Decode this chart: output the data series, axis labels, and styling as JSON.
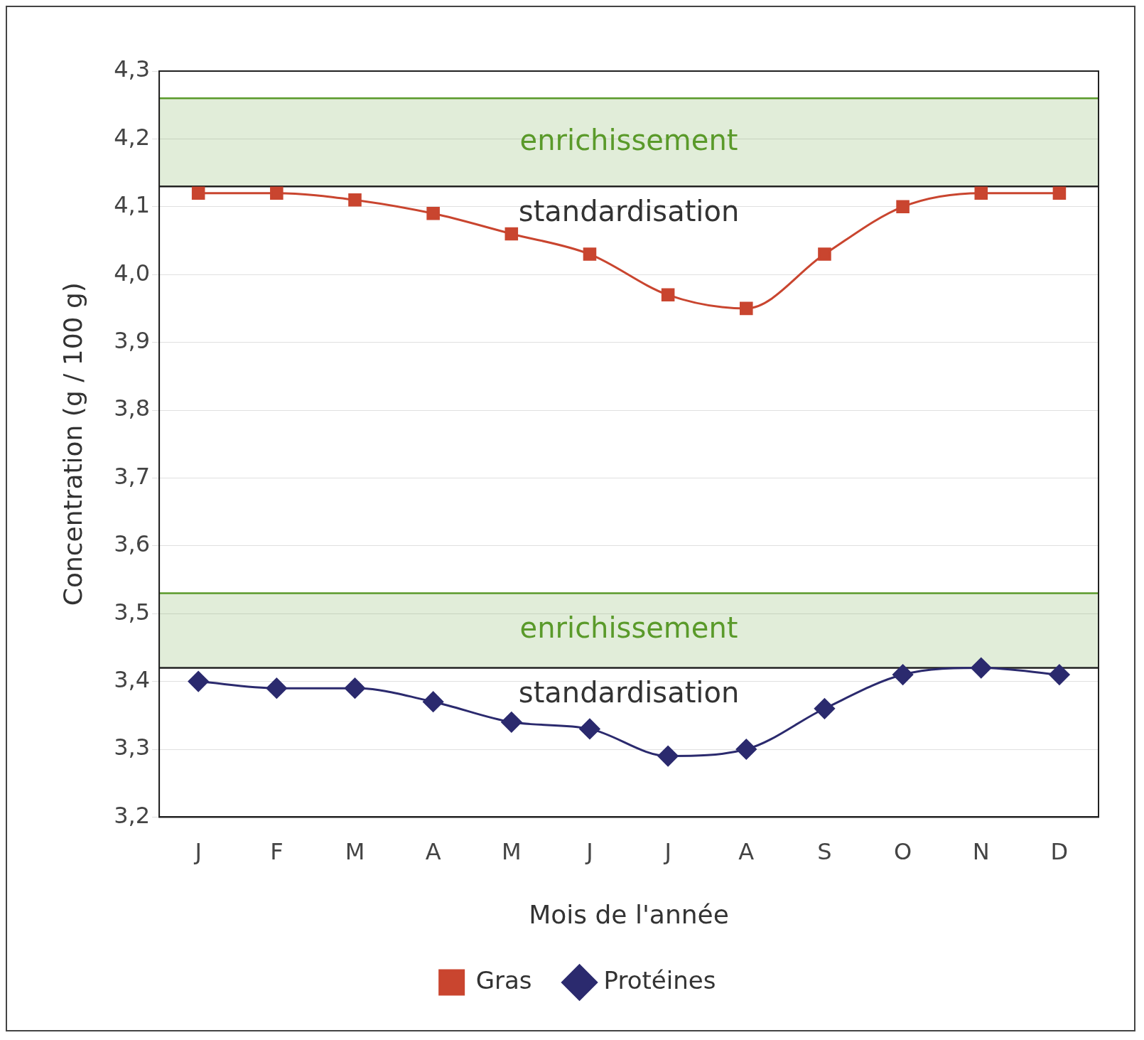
{
  "chart_data": {
    "type": "line",
    "xlabel": "Mois de l'année",
    "ylabel": "Concentration (g / 100 g)",
    "categories": [
      "J",
      "F",
      "M",
      "A",
      "M",
      "J",
      "J",
      "A",
      "S",
      "O",
      "N",
      "D"
    ],
    "series": [
      {
        "name": "Gras",
        "color": "#c9452f",
        "marker": "square",
        "values": [
          4.12,
          4.12,
          4.11,
          4.09,
          4.06,
          4.03,
          3.97,
          3.95,
          4.03,
          4.1,
          4.12,
          4.12
        ]
      },
      {
        "name": "Protéines",
        "color": "#2b2a6e",
        "marker": "diamond",
        "values": [
          3.4,
          3.39,
          3.39,
          3.37,
          3.34,
          3.33,
          3.29,
          3.3,
          3.36,
          3.41,
          3.42,
          3.41
        ]
      }
    ],
    "ylim": [
      3.2,
      4.3
    ],
    "yticks": [
      {
        "value": 3.2,
        "label": "3,2"
      },
      {
        "value": 3.3,
        "label": "3,3"
      },
      {
        "value": 3.4,
        "label": "3,4"
      },
      {
        "value": 3.5,
        "label": "3,5"
      },
      {
        "value": 3.6,
        "label": "3,6"
      },
      {
        "value": 3.7,
        "label": "3,7"
      },
      {
        "value": 3.8,
        "label": "3,8"
      },
      {
        "value": 3.9,
        "label": "3,9"
      },
      {
        "value": 4.0,
        "label": "4,0"
      },
      {
        "value": 4.1,
        "label": "4,1"
      },
      {
        "value": 4.2,
        "label": "4,2"
      },
      {
        "value": 4.3,
        "label": "4,3"
      }
    ],
    "bands": [
      {
        "axis": "y",
        "from": 4.13,
        "to": 4.26,
        "label": "enrichissement",
        "color": "#5a9a2a"
      },
      {
        "axis": "y",
        "from": 3.42,
        "to": 3.53,
        "label": "enrichissement",
        "color": "#5a9a2a"
      }
    ],
    "ref_lines": [
      {
        "axis": "y",
        "value": 4.26,
        "color": "#5a9a2a"
      },
      {
        "axis": "y",
        "value": 4.13,
        "color": "#222222"
      },
      {
        "axis": "y",
        "value": 3.53,
        "color": "#5a9a2a"
      },
      {
        "axis": "y",
        "value": 3.42,
        "color": "#222222"
      }
    ],
    "annotations": [
      "standardisation",
      "standardisation"
    ],
    "grid": "y",
    "legend": "bottom",
    "line_style": "solid"
  }
}
